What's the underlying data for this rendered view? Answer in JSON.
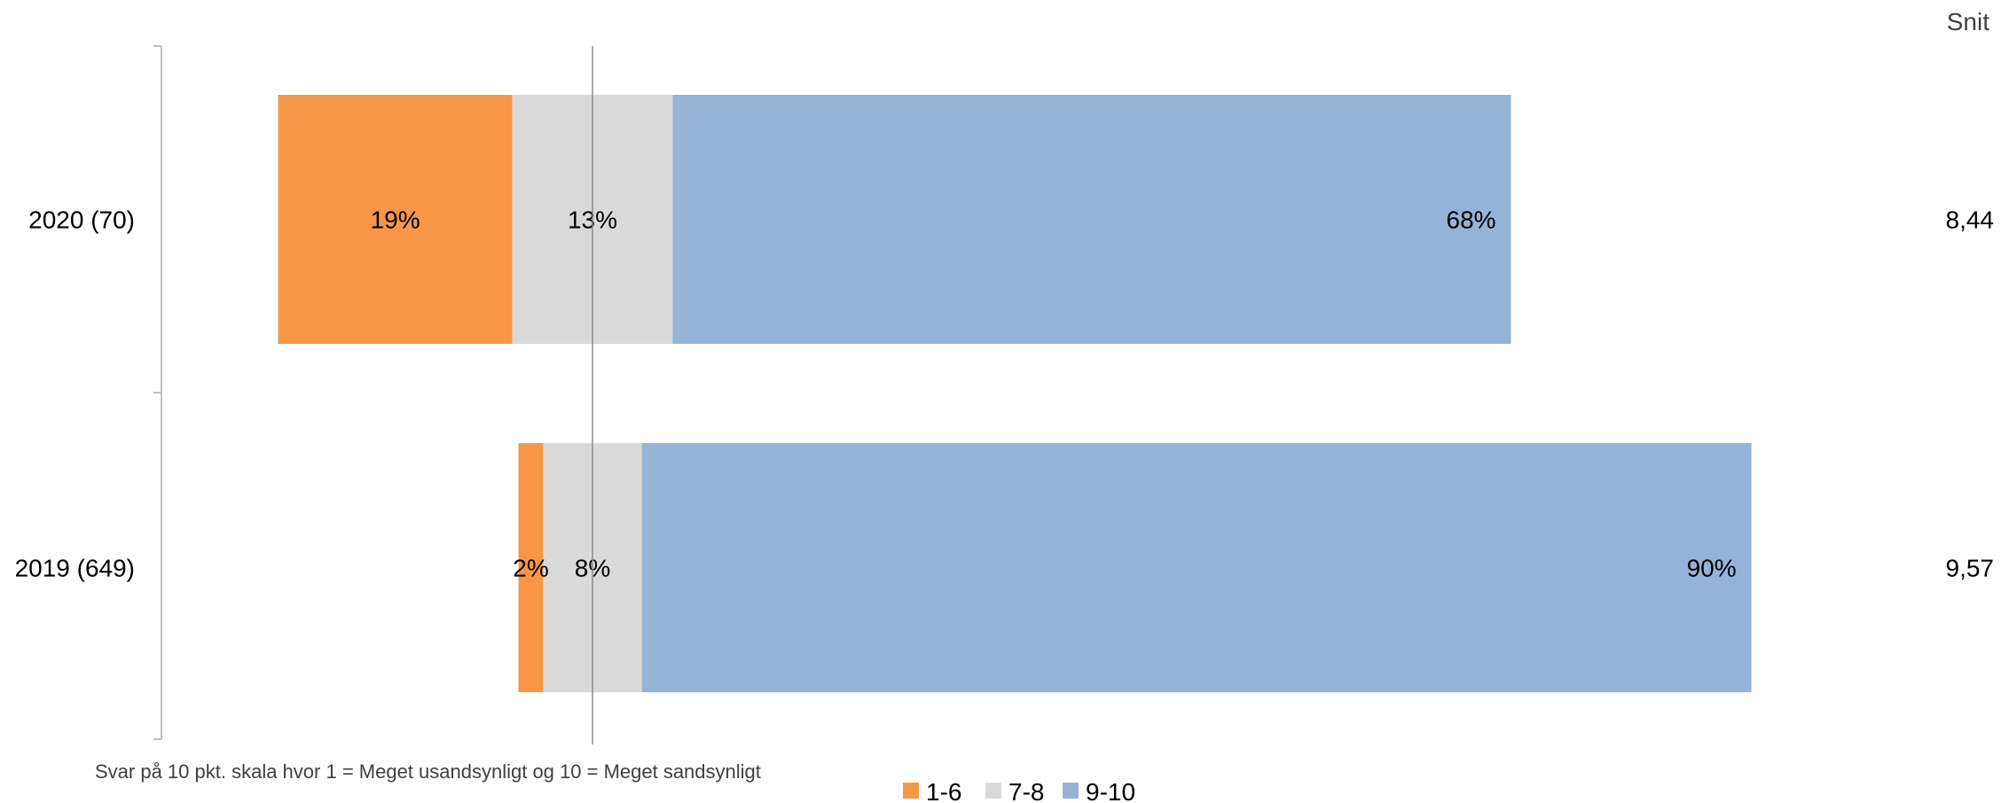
{
  "chart_data": {
    "type": "bar",
    "orientation": "horizontal-stacked-diverging",
    "categories": [
      "2020 (70)",
      "2019 (649)"
    ],
    "series": [
      {
        "name": "1-6",
        "values": [
          19,
          2
        ],
        "labels": [
          "19%",
          "2%"
        ],
        "color": "#F79646"
      },
      {
        "name": "7-8",
        "values": [
          13,
          8
        ],
        "labels": [
          "13%",
          "8%"
        ],
        "color": "#D9D9D9"
      },
      {
        "name": "9-10",
        "values": [
          68,
          90
        ],
        "labels": [
          "68%",
          "90%"
        ],
        "color": "#95B3D7"
      }
    ],
    "reference_line": "center of 7-8 segment",
    "average_header": "Snit",
    "averages": [
      "8,44",
      "9,57"
    ],
    "note": "Svar på 10 pkt. skala hvor 1 = Meget usandsynligt og 10 = Meget sandsynligt",
    "legend_position": "bottom",
    "grid": false
  }
}
